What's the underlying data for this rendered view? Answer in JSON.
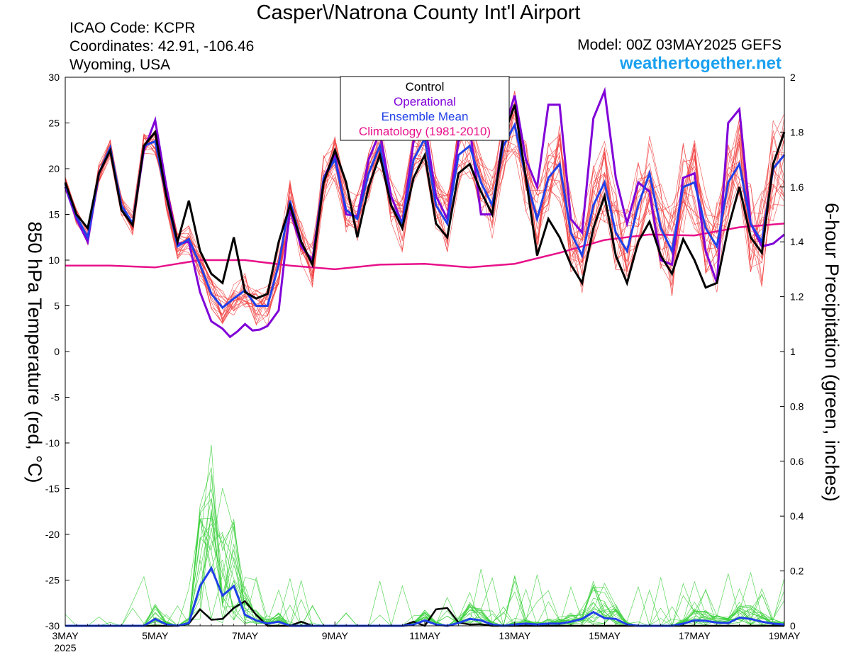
{
  "header": {
    "title": "Casper\\/Natrona County Int'l Airport",
    "icao": "ICAO Code: KCPR",
    "coords": "Coordinates: 42.91, -106.46",
    "region": "Wyoming, USA",
    "model": "Model: 00Z 03MAY2025 GEFS",
    "site": "weathertogether.net"
  },
  "chart_data": {
    "type": "line",
    "title": "Casper\\/Natrona County Int'l Airport",
    "ylabel_left": "850 hPa Temperature (red, °C)",
    "ylabel_right": "6-hour Precipitation (green, inches)",
    "x_unit": "hours since 00Z 03MAY2025",
    "xlim": [
      0,
      384
    ],
    "ylim_left": [
      -30,
      30
    ],
    "ylim_right": [
      0,
      2
    ],
    "x_ticks": [
      {
        "x": 0,
        "label": "3MAY",
        "sub": "2025"
      },
      {
        "x": 48,
        "label": "5MAY",
        "sub": ""
      },
      {
        "x": 96,
        "label": "7MAY",
        "sub": ""
      },
      {
        "x": 144,
        "label": "9MAY",
        "sub": ""
      },
      {
        "x": 192,
        "label": "11MAY",
        "sub": ""
      },
      {
        "x": 240,
        "label": "13MAY",
        "sub": ""
      },
      {
        "x": 288,
        "label": "15MAY",
        "sub": ""
      },
      {
        "x": 336,
        "label": "17MAY",
        "sub": ""
      },
      {
        "x": 384,
        "label": "19MAY",
        "sub": ""
      }
    ],
    "y_ticks_left": [
      {
        "v": 30,
        "label": "30"
      },
      {
        "v": 25,
        "label": "25"
      },
      {
        "v": 20,
        "label": "20"
      },
      {
        "v": 15,
        "label": "15"
      },
      {
        "v": 10,
        "label": "10"
      },
      {
        "v": 5,
        "label": "5"
      },
      {
        "v": 0,
        "label": "0"
      },
      {
        "v": -5,
        "label": "-5"
      },
      {
        "v": -10,
        "label": "-10"
      },
      {
        "v": -15,
        "label": "-15"
      },
      {
        "v": -20,
        "label": "-20"
      },
      {
        "v": -25,
        "label": "-25"
      },
      {
        "v": -30,
        "label": "-30"
      }
    ],
    "y_ticks_right": [
      {
        "v": 2,
        "label": "2"
      },
      {
        "v": 1.8,
        "label": "1.8"
      },
      {
        "v": 1.6,
        "label": "1.6"
      },
      {
        "v": 1.4,
        "label": "1.4"
      },
      {
        "v": 1.2,
        "label": "1.2"
      },
      {
        "v": 1,
        "label": "1"
      },
      {
        "v": 0.8,
        "label": "0.8"
      },
      {
        "v": 0.6,
        "label": "0.6"
      },
      {
        "v": 0.4,
        "label": "0.4"
      },
      {
        "v": 0.2,
        "label": "0.2"
      },
      {
        "v": 0,
        "label": "0"
      }
    ],
    "legend": {
      "placement": "top-center",
      "entries": [
        {
          "label": "Control",
          "color": "#000000"
        },
        {
          "label": "Operational",
          "color": "#8000d8"
        },
        {
          "label": "Ensemble Mean",
          "color": "#2040e8"
        },
        {
          "label": "Climatology (1981-2010)",
          "color": "#e8108a"
        }
      ]
    },
    "colors": {
      "members_temp": "#f03c3c",
      "members_precip": "#3cd03c",
      "control": "#000000",
      "operational": "#8000d8",
      "mean": "#2040e8",
      "climatology": "#e8108a"
    },
    "series_temp": {
      "control": [
        [
          0,
          18.5
        ],
        [
          6,
          15
        ],
        [
          12,
          13.5
        ],
        [
          18,
          19.5
        ],
        [
          24,
          22
        ],
        [
          30,
          15.5
        ],
        [
          36,
          13.8
        ],
        [
          42,
          22.5
        ],
        [
          48,
          24
        ],
        [
          54,
          17
        ],
        [
          60,
          12
        ],
        [
          66,
          16.5
        ],
        [
          72,
          11
        ],
        [
          78,
          8.5
        ],
        [
          84,
          7.5
        ],
        [
          90,
          12.5
        ],
        [
          96,
          6.5
        ],
        [
          102,
          5.8
        ],
        [
          108,
          6.3
        ],
        [
          114,
          12
        ],
        [
          120,
          16
        ],
        [
          126,
          12
        ],
        [
          132,
          9.5
        ],
        [
          138,
          18.5
        ],
        [
          144,
          22
        ],
        [
          150,
          18.5
        ],
        [
          156,
          12.5
        ],
        [
          162,
          18
        ],
        [
          168,
          21.5
        ],
        [
          174,
          16
        ],
        [
          180,
          13.5
        ],
        [
          186,
          19
        ],
        [
          192,
          21.5
        ],
        [
          198,
          14
        ],
        [
          204,
          12.5
        ],
        [
          210,
          19.5
        ],
        [
          216,
          20.5
        ],
        [
          222,
          17.5
        ],
        [
          228,
          15
        ],
        [
          234,
          23.5
        ],
        [
          240,
          27
        ],
        [
          246,
          19
        ],
        [
          252,
          10.5
        ],
        [
          258,
          14.5
        ],
        [
          264,
          12.5
        ],
        [
          270,
          9.5
        ],
        [
          276,
          7.5
        ],
        [
          282,
          13.5
        ],
        [
          288,
          17
        ],
        [
          294,
          10.5
        ],
        [
          300,
          7.5
        ],
        [
          306,
          12
        ],
        [
          312,
          14.2
        ],
        [
          318,
          10.5
        ],
        [
          324,
          8.5
        ],
        [
          330,
          12.3
        ],
        [
          336,
          10
        ],
        [
          342,
          7
        ],
        [
          348,
          7.5
        ],
        [
          354,
          13.5
        ],
        [
          360,
          18
        ],
        [
          366,
          12.5
        ],
        [
          372,
          10.8
        ],
        [
          378,
          20.5
        ],
        [
          384,
          24
        ]
      ],
      "operational": [
        [
          0,
          18
        ],
        [
          6,
          14.5
        ],
        [
          12,
          12
        ],
        [
          18,
          19.5
        ],
        [
          24,
          22
        ],
        [
          30,
          16
        ],
        [
          36,
          14
        ],
        [
          42,
          22
        ],
        [
          48,
          25.3
        ],
        [
          54,
          18
        ],
        [
          60,
          11.8
        ],
        [
          66,
          12
        ],
        [
          72,
          6.5
        ],
        [
          78,
          3.3
        ],
        [
          84,
          2.5
        ],
        [
          88,
          1.6
        ],
        [
          92,
          2.2
        ],
        [
          96,
          3
        ],
        [
          100,
          2.3
        ],
        [
          104,
          2.4
        ],
        [
          108,
          2.8
        ],
        [
          114,
          4.5
        ],
        [
          120,
          15.5
        ],
        [
          126,
          11.5
        ],
        [
          132,
          10
        ],
        [
          138,
          19
        ],
        [
          144,
          21.5
        ],
        [
          150,
          15
        ],
        [
          156,
          14.8
        ],
        [
          162,
          21
        ],
        [
          168,
          24
        ],
        [
          174,
          17
        ],
        [
          180,
          14
        ],
        [
          186,
          23
        ],
        [
          192,
          25
        ],
        [
          198,
          17
        ],
        [
          204,
          14.5
        ],
        [
          210,
          23
        ],
        [
          216,
          24.5
        ],
        [
          222,
          15
        ],
        [
          228,
          15
        ],
        [
          234,
          24
        ],
        [
          240,
          28
        ],
        [
          246,
          21
        ],
        [
          252,
          18
        ],
        [
          258,
          27
        ],
        [
          264,
          27
        ],
        [
          270,
          14.5
        ],
        [
          276,
          13
        ],
        [
          282,
          25.5
        ],
        [
          288,
          28.5
        ],
        [
          294,
          19
        ],
        [
          300,
          14
        ],
        [
          306,
          18.5
        ],
        [
          312,
          17.5
        ],
        [
          318,
          10
        ],
        [
          324,
          9.5
        ],
        [
          330,
          19
        ],
        [
          336,
          19.5
        ],
        [
          342,
          11
        ],
        [
          348,
          7.5
        ],
        [
          354,
          25
        ],
        [
          360,
          26.5
        ],
        [
          366,
          14
        ],
        [
          372,
          11.5
        ],
        [
          378,
          11.8
        ],
        [
          384,
          12.8
        ]
      ],
      "mean": [
        [
          0,
          18.3
        ],
        [
          6,
          14.8
        ],
        [
          12,
          12.5
        ],
        [
          18,
          19.5
        ],
        [
          24,
          22.3
        ],
        [
          30,
          16
        ],
        [
          36,
          14
        ],
        [
          42,
          22.5
        ],
        [
          48,
          23
        ],
        [
          54,
          17
        ],
        [
          60,
          11.5
        ],
        [
          66,
          12.3
        ],
        [
          72,
          9.5
        ],
        [
          78,
          6.3
        ],
        [
          84,
          4.8
        ],
        [
          90,
          5.8
        ],
        [
          96,
          6.7
        ],
        [
          102,
          5
        ],
        [
          108,
          5
        ],
        [
          114,
          9.5
        ],
        [
          120,
          16.5
        ],
        [
          126,
          12
        ],
        [
          132,
          9.5
        ],
        [
          138,
          19
        ],
        [
          144,
          21
        ],
        [
          150,
          15.5
        ],
        [
          156,
          14.5
        ],
        [
          162,
          19.5
        ],
        [
          168,
          22.5
        ],
        [
          174,
          16
        ],
        [
          180,
          14
        ],
        [
          186,
          21
        ],
        [
          192,
          23.3
        ],
        [
          198,
          16
        ],
        [
          204,
          14
        ],
        [
          210,
          21.5
        ],
        [
          216,
          22.5
        ],
        [
          222,
          18.5
        ],
        [
          228,
          16
        ],
        [
          234,
          22.5
        ],
        [
          240,
          24.8
        ],
        [
          246,
          19
        ],
        [
          252,
          14.5
        ],
        [
          258,
          19
        ],
        [
          264,
          20.5
        ],
        [
          270,
          13
        ],
        [
          276,
          10.5
        ],
        [
          282,
          16
        ],
        [
          288,
          18.5
        ],
        [
          294,
          13
        ],
        [
          300,
          11
        ],
        [
          306,
          16
        ],
        [
          312,
          19.5
        ],
        [
          318,
          13.5
        ],
        [
          324,
          11
        ],
        [
          330,
          18
        ],
        [
          336,
          18.5
        ],
        [
          342,
          13.5
        ],
        [
          348,
          11.5
        ],
        [
          354,
          18.5
        ],
        [
          360,
          20.5
        ],
        [
          366,
          14
        ],
        [
          372,
          12
        ],
        [
          378,
          20
        ],
        [
          384,
          21.5
        ]
      ],
      "climatology": [
        [
          0,
          9.4
        ],
        [
          24,
          9.4
        ],
        [
          48,
          9.2
        ],
        [
          72,
          10
        ],
        [
          96,
          10
        ],
        [
          120,
          9.4
        ],
        [
          144,
          9
        ],
        [
          168,
          9.5
        ],
        [
          192,
          9.6
        ],
        [
          216,
          9.2
        ],
        [
          240,
          9.6
        ],
        [
          264,
          10.8
        ],
        [
          288,
          12.2
        ],
        [
          312,
          12.8
        ],
        [
          336,
          12.7
        ],
        [
          360,
          13.6
        ],
        [
          384,
          14
        ]
      ]
    },
    "series_precip": {
      "control": [
        [
          0,
          0
        ],
        [
          60,
          0
        ],
        [
          66,
          0.008
        ],
        [
          72,
          0.06
        ],
        [
          78,
          0.022
        ],
        [
          84,
          0.025
        ],
        [
          90,
          0.065
        ],
        [
          96,
          0.09
        ],
        [
          102,
          0.04
        ],
        [
          108,
          0
        ],
        [
          114,
          0
        ],
        [
          120,
          0
        ],
        [
          126,
          0.015
        ],
        [
          132,
          0
        ],
        [
          138,
          0
        ],
        [
          180,
          0
        ],
        [
          186,
          0.015
        ],
        [
          192,
          0
        ],
        [
          198,
          0.06
        ],
        [
          204,
          0.065
        ],
        [
          210,
          0.012
        ],
        [
          216,
          0.005
        ],
        [
          222,
          0.006
        ],
        [
          228,
          0
        ],
        [
          384,
          0
        ]
      ],
      "mean": [
        [
          0,
          0
        ],
        [
          42,
          0
        ],
        [
          48,
          0.025
        ],
        [
          54,
          0.005
        ],
        [
          60,
          0
        ],
        [
          66,
          0.01
        ],
        [
          72,
          0.145
        ],
        [
          78,
          0.21
        ],
        [
          84,
          0.11
        ],
        [
          90,
          0.145
        ],
        [
          96,
          0.04
        ],
        [
          102,
          0.02
        ],
        [
          108,
          0.008
        ],
        [
          114,
          0.015
        ],
        [
          120,
          0
        ],
        [
          180,
          0
        ],
        [
          186,
          0.005
        ],
        [
          192,
          0.02
        ],
        [
          198,
          0.005
        ],
        [
          204,
          0
        ],
        [
          210,
          0.01
        ],
        [
          216,
          0.025
        ],
        [
          222,
          0.02
        ],
        [
          228,
          0.005
        ],
        [
          234,
          0
        ],
        [
          240,
          0.005
        ],
        [
          246,
          0.008
        ],
        [
          252,
          0.005
        ],
        [
          258,
          0.008
        ],
        [
          264,
          0.008
        ],
        [
          270,
          0.015
        ],
        [
          276,
          0.025
        ],
        [
          282,
          0.05
        ],
        [
          288,
          0.028
        ],
        [
          294,
          0.025
        ],
        [
          300,
          0.005
        ],
        [
          306,
          0
        ],
        [
          312,
          0
        ],
        [
          318,
          0
        ],
        [
          324,
          0
        ],
        [
          330,
          0.008
        ],
        [
          336,
          0.02
        ],
        [
          342,
          0.018
        ],
        [
          348,
          0.012
        ],
        [
          354,
          0.01
        ],
        [
          360,
          0.03
        ],
        [
          366,
          0.025
        ],
        [
          372,
          0.015
        ],
        [
          378,
          0.008
        ],
        [
          384,
          0.005
        ]
      ]
    }
  }
}
